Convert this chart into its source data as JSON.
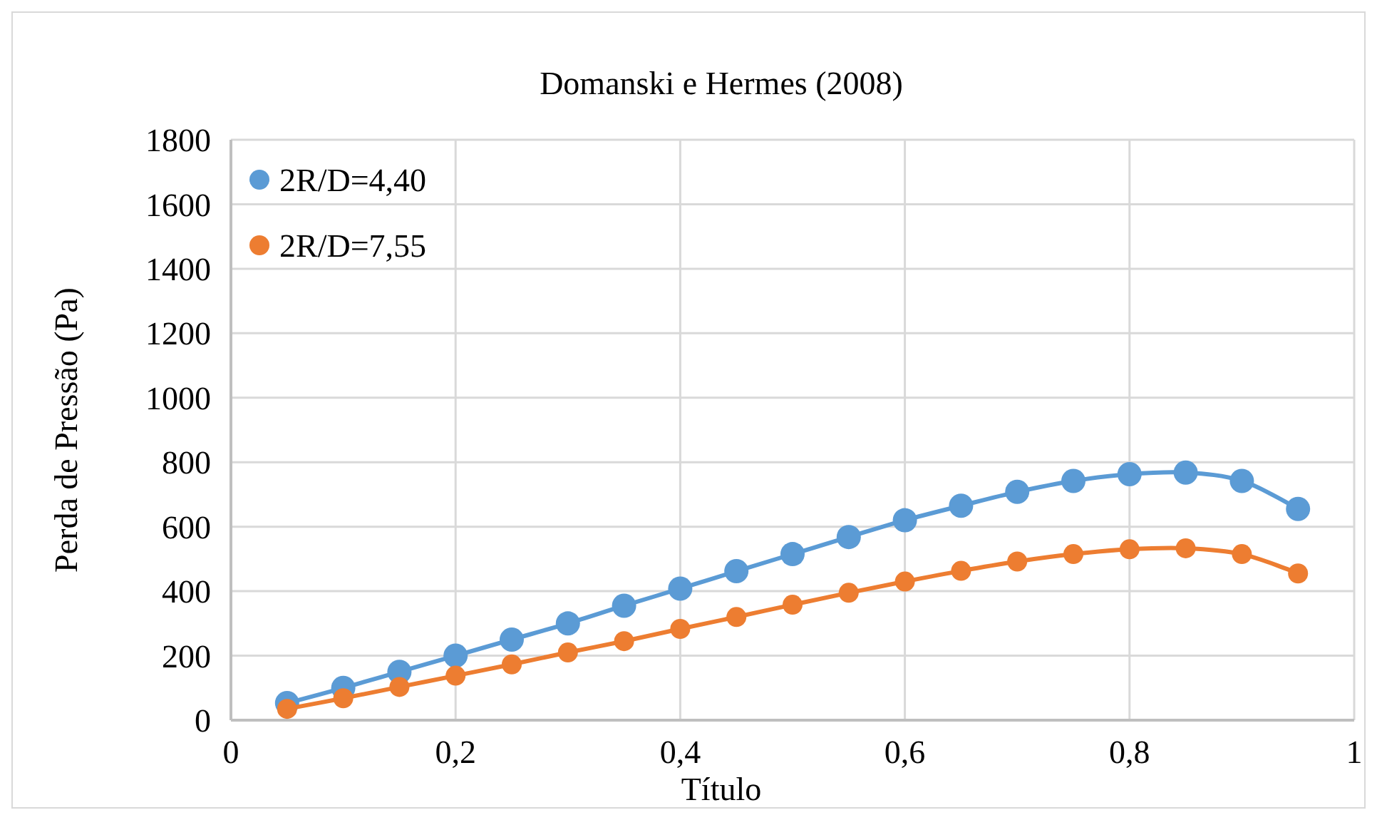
{
  "chart_data": {
    "type": "line",
    "title": "Domanski e Hermes (2008)",
    "xlabel": "Título",
    "ylabel": "Perda de Pressão (Pa)",
    "x": [
      0.05,
      0.1,
      0.15,
      0.2,
      0.25,
      0.3,
      0.35,
      0.4,
      0.45,
      0.5,
      0.55,
      0.6,
      0.65,
      0.7,
      0.75,
      0.8,
      0.85,
      0.9,
      0.95
    ],
    "series": [
      {
        "name": "2R/D=4,40",
        "color": "#5b9bd5",
        "values": [
          53,
          100,
          150,
          200,
          250,
          300,
          355,
          408,
          462,
          515,
          568,
          620,
          665,
          708,
          742,
          763,
          768,
          742,
          655
        ]
      },
      {
        "name": "2R/D=7,55",
        "color": "#ed7d31",
        "values": [
          35,
          68,
          103,
          138,
          173,
          210,
          245,
          283,
          320,
          358,
          395,
          430,
          463,
          492,
          515,
          530,
          533,
          515,
          455
        ]
      }
    ],
    "xlim": [
      0,
      1
    ],
    "xticks": [
      0,
      {
        "value": 0.2,
        "label": "0,2"
      },
      {
        "value": 0.4,
        "label": "0,4"
      },
      {
        "value": 0.6,
        "label": "0,6"
      },
      {
        "value": 0.8,
        "label": "0,8"
      },
      1
    ],
    "ylim": [
      0,
      1800
    ],
    "yticks": [
      0,
      200,
      400,
      600,
      800,
      1000,
      1200,
      1400,
      1600,
      1800
    ],
    "grid": true,
    "legend": "top left",
    "marker": "circle",
    "line_style": "solid"
  }
}
